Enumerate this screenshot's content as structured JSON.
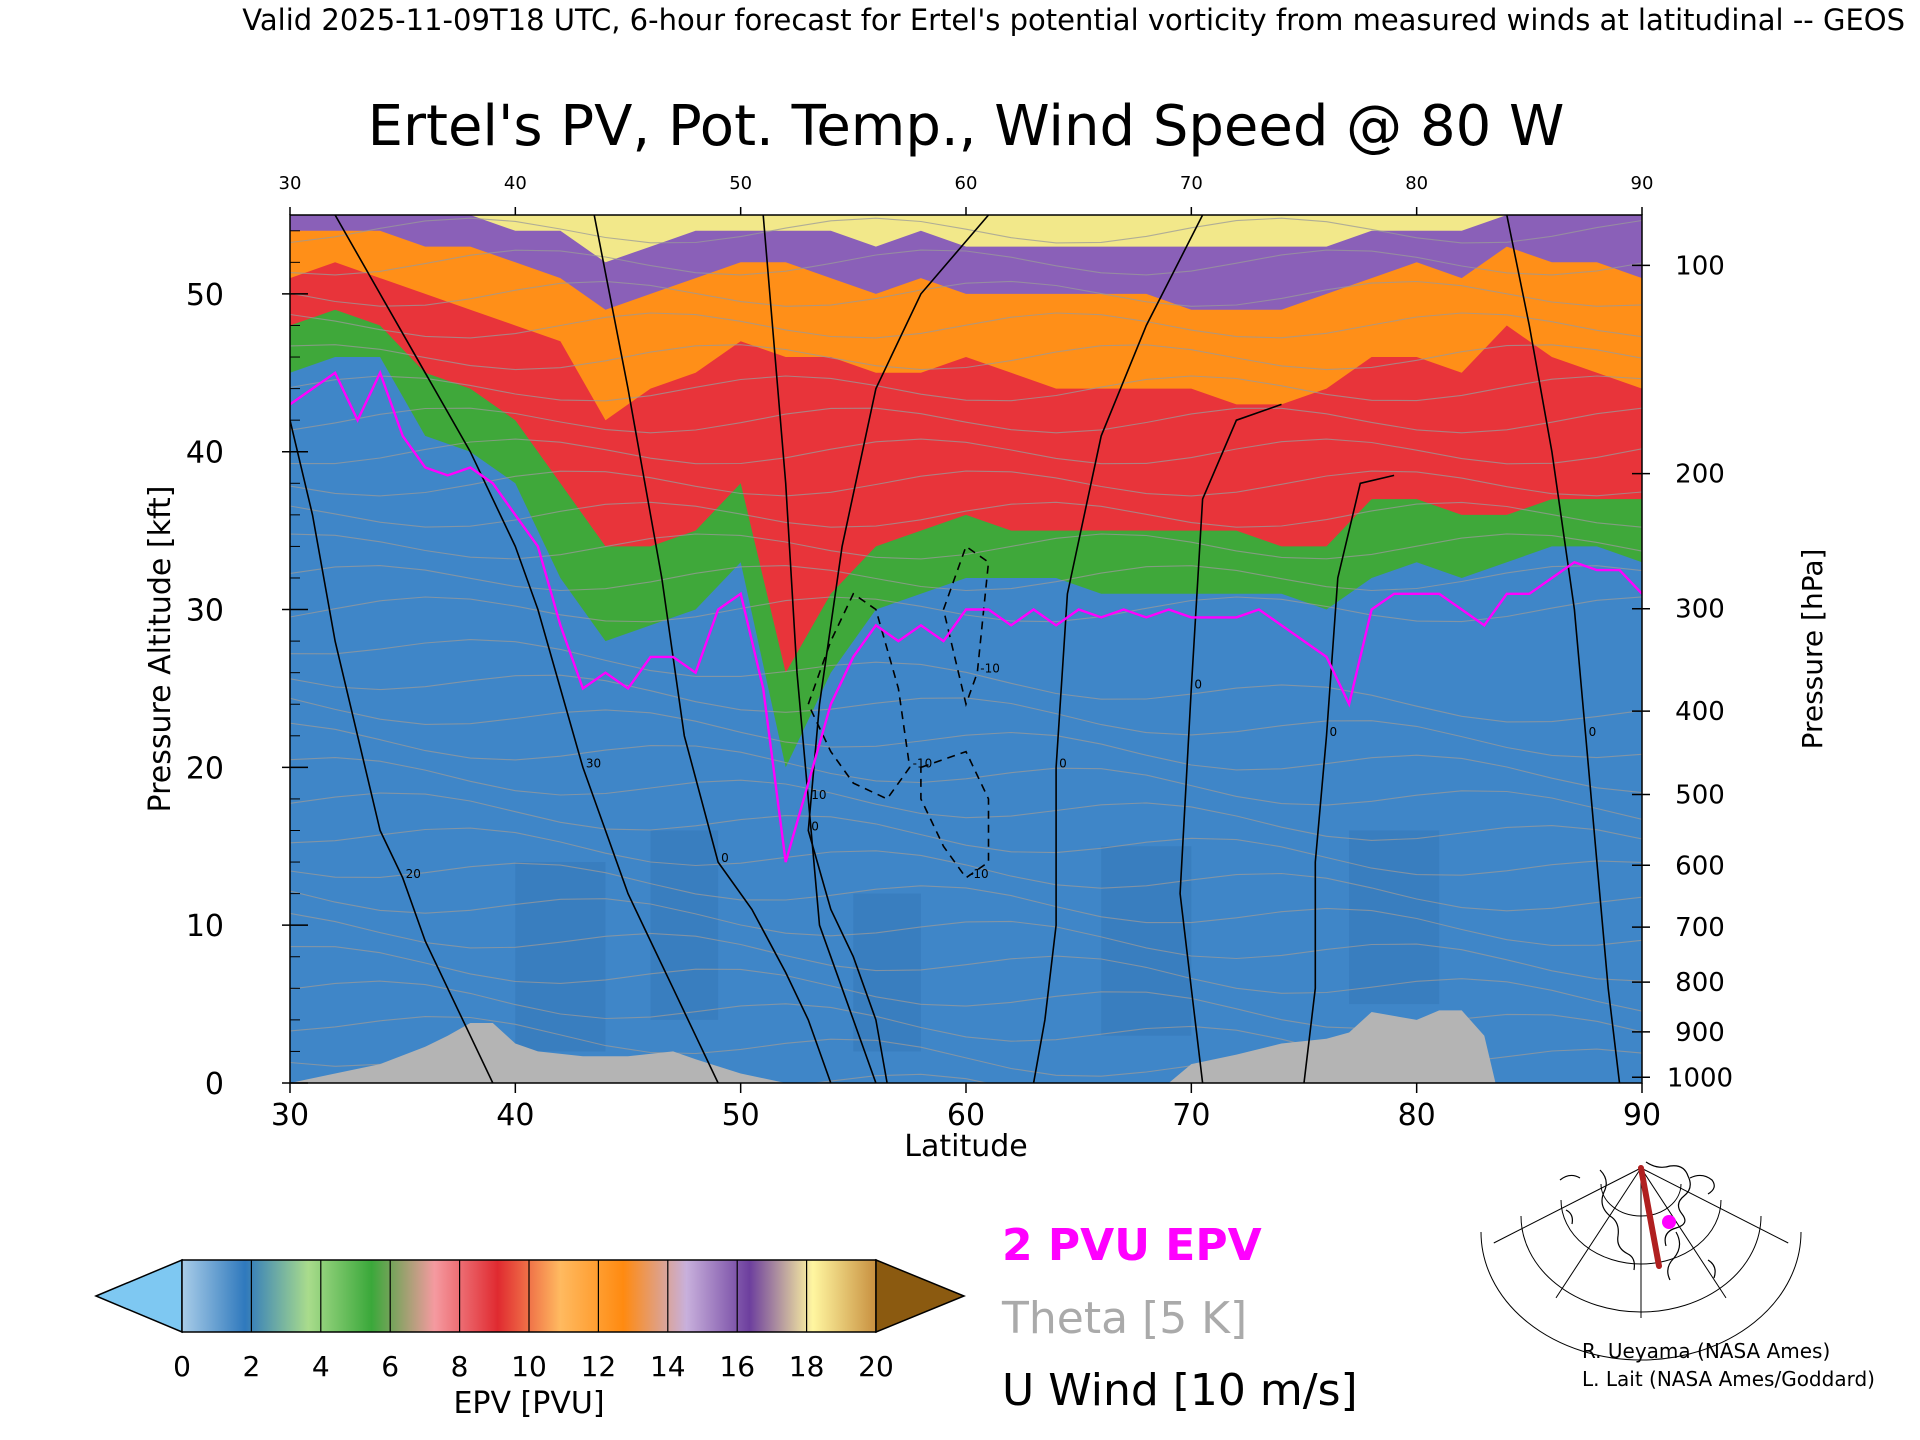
{
  "header": {
    "banner": "Valid 2025-11-09T18 UTC, 6-hour forecast for Ertel's potential vorticity from measured winds at latitudinal -- GEOS",
    "title": "Ertel's PV, Pot. Temp., Wind Speed @ 80 W"
  },
  "chart_data": {
    "type": "heatmap",
    "title": "Ertel's PV, Pot. Temp., Wind Speed @ 80 W",
    "xlabel": "Latitude",
    "ylabel": "Pressure Altitude [kft]",
    "y2label": "Pressure [hPa]",
    "xlim": [
      30,
      90
    ],
    "ylim": [
      0,
      55
    ],
    "x_ticks": [
      30,
      40,
      50,
      60,
      70,
      80,
      90
    ],
    "x_tick_labels": [
      "30",
      "40",
      "50",
      "60",
      "70",
      "80",
      "90"
    ],
    "top_tick_labels": [
      "30",
      "40",
      "50",
      "60",
      "70",
      "80",
      "90"
    ],
    "y_ticks": [
      0,
      10,
      20,
      30,
      40,
      50
    ],
    "y_tick_labels": [
      "0",
      "10",
      "20",
      "30",
      "40",
      "50"
    ],
    "pressure_levels": [
      1000,
      900,
      800,
      700,
      600,
      500,
      400,
      300,
      200,
      100
    ],
    "pressure_tick_labels": [
      "1000",
      "900",
      "800",
      "700",
      "600",
      "500",
      "400",
      "300",
      "200",
      "100"
    ],
    "tropopause_kft": [
      [
        30,
        43
      ],
      [
        31,
        44
      ],
      [
        32,
        45
      ],
      [
        33,
        42
      ],
      [
        34,
        45
      ],
      [
        35,
        41
      ],
      [
        36,
        39
      ],
      [
        37,
        38.5
      ],
      [
        38,
        39
      ],
      [
        39,
        38
      ],
      [
        40,
        36
      ],
      [
        41,
        34
      ],
      [
        42,
        29
      ],
      [
        43,
        25
      ],
      [
        44,
        26
      ],
      [
        45,
        25
      ],
      [
        46,
        27
      ],
      [
        47,
        27
      ],
      [
        48,
        26
      ],
      [
        49,
        30
      ],
      [
        50,
        31
      ],
      [
        51,
        25
      ],
      [
        52,
        14
      ],
      [
        53,
        19
      ],
      [
        54,
        24
      ],
      [
        55,
        27
      ],
      [
        56,
        29
      ],
      [
        57,
        28
      ],
      [
        58,
        29
      ],
      [
        59,
        28
      ],
      [
        60,
        30
      ],
      [
        61,
        30
      ],
      [
        62,
        29
      ],
      [
        63,
        30
      ],
      [
        64,
        29
      ],
      [
        65,
        30
      ],
      [
        66,
        29.5
      ],
      [
        67,
        30
      ],
      [
        68,
        29.5
      ],
      [
        69,
        30
      ],
      [
        70,
        29.5
      ],
      [
        71,
        29.5
      ],
      [
        72,
        29.5
      ],
      [
        73,
        30
      ],
      [
        74,
        29
      ],
      [
        75,
        28
      ],
      [
        76,
        27
      ],
      [
        77,
        24
      ],
      [
        78,
        30
      ],
      [
        79,
        31
      ],
      [
        80,
        31
      ],
      [
        81,
        31
      ],
      [
        82,
        30
      ],
      [
        83,
        29
      ],
      [
        84,
        31
      ],
      [
        85,
        31
      ],
      [
        86,
        32
      ],
      [
        87,
        33
      ],
      [
        88,
        32.5
      ],
      [
        89,
        32.5
      ],
      [
        90,
        31
      ]
    ],
    "epv_bands_kft": [
      [
        30,
        45,
        48,
        51,
        54,
        55
      ],
      [
        32,
        46,
        49,
        52,
        54,
        55
      ],
      [
        34,
        46,
        48,
        51,
        54,
        55
      ],
      [
        36,
        41,
        45,
        50,
        53,
        55
      ],
      [
        38,
        40,
        44,
        49,
        53,
        55
      ],
      [
        40,
        38,
        42,
        48,
        52,
        54
      ],
      [
        42,
        32,
        38,
        47,
        51,
        54
      ],
      [
        44,
        28,
        34,
        42,
        49,
        52
      ],
      [
        46,
        29,
        34,
        44,
        50,
        53
      ],
      [
        48,
        30,
        35,
        45,
        51,
        54
      ],
      [
        50,
        33,
        38,
        47,
        52,
        54
      ],
      [
        52,
        20,
        26,
        46,
        52,
        54
      ],
      [
        54,
        26,
        31,
        46,
        51,
        54
      ],
      [
        56,
        30,
        34,
        45,
        50,
        53
      ],
      [
        58,
        31,
        35,
        45,
        51,
        54
      ],
      [
        60,
        32,
        36,
        46,
        50,
        53
      ],
      [
        62,
        32,
        35,
        45,
        50,
        53
      ],
      [
        64,
        32,
        35,
        44,
        50,
        53
      ],
      [
        66,
        31,
        35,
        44,
        50,
        53
      ],
      [
        68,
        31,
        35,
        44,
        50,
        53
      ],
      [
        70,
        31,
        35,
        44,
        49,
        53
      ],
      [
        72,
        31,
        35,
        43,
        49,
        53
      ],
      [
        74,
        31,
        34,
        43,
        49,
        53
      ],
      [
        76,
        30,
        34,
        44,
        50,
        53
      ],
      [
        78,
        32,
        37,
        46,
        51,
        54
      ],
      [
        80,
        33,
        37,
        46,
        52,
        54
      ],
      [
        82,
        32,
        36,
        45,
        51,
        54
      ],
      [
        84,
        33,
        36,
        48,
        53,
        55
      ],
      [
        86,
        34,
        37,
        46,
        52,
        55
      ],
      [
        88,
        34,
        37,
        45,
        52,
        55
      ],
      [
        90,
        33,
        37,
        44,
        51,
        55
      ]
    ],
    "terrain_kft": [
      [
        30,
        0
      ],
      [
        32,
        0.6
      ],
      [
        34,
        1.2
      ],
      [
        36,
        2.3
      ],
      [
        37,
        3
      ],
      [
        38,
        3.8
      ],
      [
        39,
        3.8
      ],
      [
        40,
        2.5
      ],
      [
        41,
        2
      ],
      [
        43,
        1.7
      ],
      [
        45,
        1.7
      ],
      [
        47,
        2
      ],
      [
        48,
        1.5
      ],
      [
        50,
        0.6
      ],
      [
        52,
        0
      ],
      [
        69,
        0
      ],
      [
        70,
        1.2
      ],
      [
        72,
        1.8
      ],
      [
        74,
        2.5
      ],
      [
        76,
        2.8
      ],
      [
        77,
        3.2
      ],
      [
        78,
        4.5
      ],
      [
        80,
        4
      ],
      [
        81,
        4.6
      ],
      [
        82,
        4.6
      ],
      [
        83,
        3
      ],
      [
        83.5,
        0
      ],
      [
        90,
        0
      ]
    ],
    "wind_contours": [
      {
        "label": "0",
        "dashed": false,
        "points": [
          [
            43.5,
            55
          ],
          [
            45,
            44
          ],
          [
            46.5,
            32
          ],
          [
            47.5,
            22
          ],
          [
            49,
            14
          ],
          [
            50.5,
            11
          ],
          [
            52,
            7
          ],
          [
            53,
            4
          ],
          [
            54,
            0
          ]
        ]
      },
      {
        "label": "10",
        "dashed": false,
        "points": [
          [
            51,
            55
          ],
          [
            52,
            38
          ],
          [
            52.5,
            26
          ],
          [
            53,
            18
          ],
          [
            53.5,
            10
          ],
          [
            54.5,
            6
          ],
          [
            56,
            0
          ]
        ]
      },
      {
        "label": "0",
        "dashed": false,
        "points": [
          [
            61,
            55
          ],
          [
            58,
            50
          ],
          [
            56,
            44
          ],
          [
            54.5,
            34
          ],
          [
            53.5,
            24
          ],
          [
            53,
            16
          ],
          [
            54,
            11
          ],
          [
            55,
            8
          ],
          [
            56,
            4
          ],
          [
            56.5,
            0
          ]
        ]
      },
      {
        "label": "0",
        "dashed": false,
        "points": [
          [
            70.5,
            55
          ],
          [
            68,
            48
          ],
          [
            66,
            41
          ],
          [
            64.5,
            31
          ],
          [
            64,
            20
          ],
          [
            64,
            10
          ],
          [
            63.5,
            4
          ],
          [
            63,
            0
          ]
        ]
      },
      {
        "label": "0",
        "dashed": false,
        "points": [
          [
            74,
            43
          ],
          [
            72,
            42
          ],
          [
            70.5,
            37
          ],
          [
            70,
            25
          ],
          [
            69.5,
            12
          ],
          [
            70,
            6
          ],
          [
            70.5,
            0
          ]
        ]
      },
      {
        "label": "0",
        "dashed": false,
        "points": [
          [
            79,
            38.5
          ],
          [
            77.5,
            38
          ],
          [
            76.5,
            32
          ],
          [
            76,
            22
          ],
          [
            75.5,
            14
          ],
          [
            75.5,
            6
          ],
          [
            75,
            0
          ]
        ]
      },
      {
        "label": "0",
        "dashed": false,
        "points": [
          [
            84,
            55
          ],
          [
            85,
            48
          ],
          [
            86,
            40
          ],
          [
            87,
            30
          ],
          [
            87.5,
            22
          ],
          [
            88,
            14
          ],
          [
            88.5,
            6
          ],
          [
            89,
            0
          ]
        ]
      },
      {
        "label": "30",
        "dashed": false,
        "points": [
          [
            32,
            55
          ],
          [
            34,
            50
          ],
          [
            36,
            45
          ],
          [
            38,
            40
          ],
          [
            40,
            34
          ],
          [
            41,
            30
          ],
          [
            42,
            25
          ],
          [
            43,
            20
          ],
          [
            44,
            16
          ],
          [
            45,
            12
          ],
          [
            46,
            9
          ],
          [
            47,
            6
          ],
          [
            48,
            3
          ],
          [
            49,
            0
          ]
        ]
      },
      {
        "label": "20",
        "dashed": false,
        "points": [
          [
            30,
            42
          ],
          [
            31,
            36
          ],
          [
            32,
            28
          ],
          [
            33,
            22
          ],
          [
            34,
            16
          ],
          [
            35,
            13
          ],
          [
            36,
            9
          ],
          [
            37,
            6
          ],
          [
            38,
            3
          ],
          [
            39,
            0
          ]
        ]
      },
      {
        "label": "-10",
        "dashed": true,
        "points": [
          [
            53,
            24
          ],
          [
            54,
            28
          ],
          [
            55,
            31
          ],
          [
            56,
            30
          ],
          [
            57,
            25
          ],
          [
            57.5,
            20
          ],
          [
            56.5,
            18
          ],
          [
            55,
            19
          ],
          [
            54,
            21
          ],
          [
            53,
            24
          ]
        ]
      },
      {
        "label": "-10",
        "dashed": true,
        "points": [
          [
            58,
            20
          ],
          [
            60,
            21
          ],
          [
            61,
            18
          ],
          [
            61,
            14
          ],
          [
            60,
            13
          ],
          [
            59,
            15
          ],
          [
            58,
            18
          ],
          [
            58,
            20
          ]
        ]
      },
      {
        "label": "-10",
        "dashed": true,
        "points": [
          [
            59,
            30
          ],
          [
            60,
            34
          ],
          [
            61,
            33
          ],
          [
            60.5,
            26
          ],
          [
            60,
            24
          ],
          [
            59.5,
            27
          ],
          [
            59,
            30
          ]
        ]
      }
    ],
    "colorbar": {
      "label": "EPV [PVU]",
      "ticks": [
        0,
        2,
        4,
        6,
        8,
        10,
        12,
        14,
        16,
        18,
        20
      ],
      "tick_labels": [
        "0",
        "2",
        "4",
        "6",
        "8",
        "10",
        "12",
        "14",
        "16",
        "18",
        "20"
      ],
      "under_color": "#7ec8f2",
      "over_color": "#8b5a10",
      "colors": [
        "#a9cde8",
        "#2f79bd",
        "#a9dc8c",
        "#3aa83a",
        "#f59aa0",
        "#e02a30",
        "#ffba60",
        "#ff8a10",
        "#c8b0dc",
        "#6d3f9e",
        "#fff6a0",
        "#c89040"
      ]
    },
    "legend": [
      {
        "label": "2 PVU EPV",
        "color": "#ff00ff"
      },
      {
        "label": "Theta [5 K]",
        "color": "#aaaaaa"
      },
      {
        "label": "U Wind [10 m/s]",
        "color": "#000000"
      }
    ]
  },
  "credits": {
    "line1": "R. Ueyama (NASA Ames)",
    "line2": "L. Lait (NASA Ames/Goddard)"
  },
  "inset_map": {
    "section_color": "#b02020",
    "marker_color": "#ff00ff"
  }
}
